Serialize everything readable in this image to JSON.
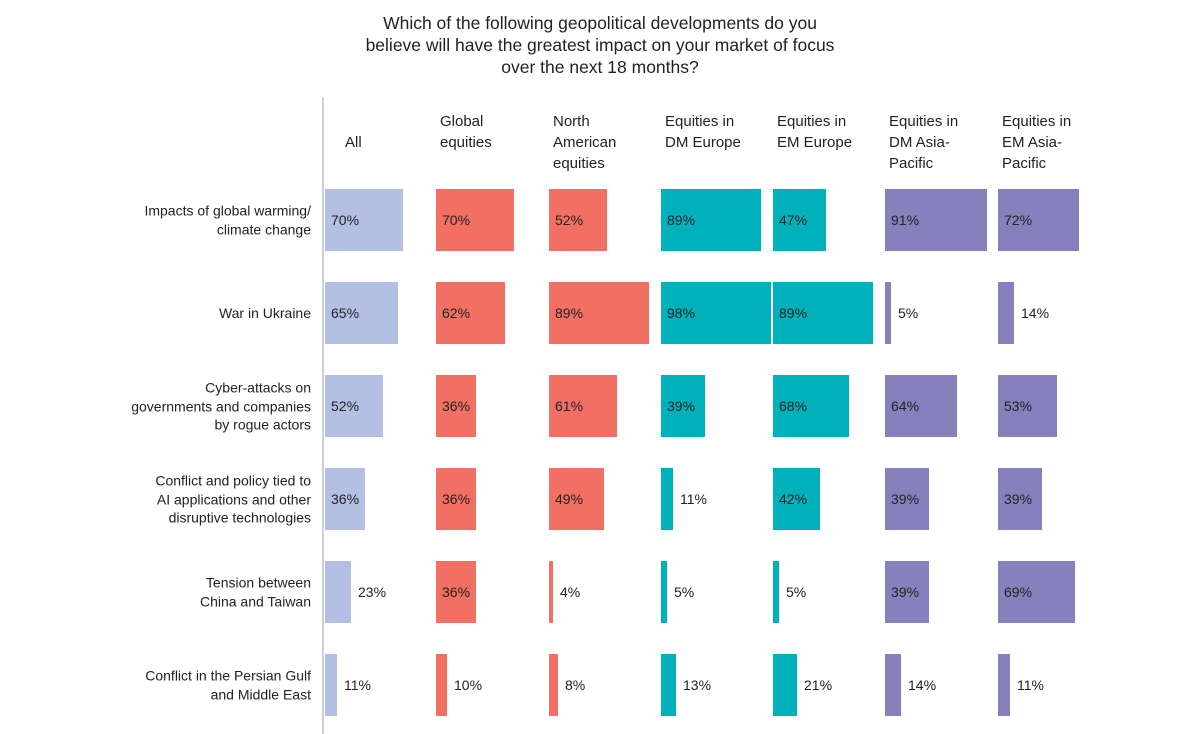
{
  "chart_data": {
    "type": "bar",
    "orientation": "horizontal",
    "title": "Which of the following geopolitical developments do you\nbelieve will have the greatest impact on your market of focus\nover the next 18 months?",
    "categories": [
      "Impacts of global warming/\nclimate change",
      "War in Ukraine",
      "Cyber-attacks on\ngovernments and companies\nby rogue actors",
      "Conflict and policy tied to\nAI applications and other\ndisruptive technologies",
      "Tension between\nChina and Taiwan",
      "Conflict in the Persian Gulf\nand Middle East"
    ],
    "series": [
      {
        "name": "All",
        "color": "#b4bfe4",
        "values": [
          70,
          65,
          52,
          36,
          23,
          11
        ]
      },
      {
        "name": "Global\nequities",
        "color": "#f26f63",
        "values": [
          70,
          62,
          36,
          36,
          36,
          10
        ]
      },
      {
        "name": "North\nAmerican\nequities",
        "color": "#f26f63",
        "values": [
          52,
          89,
          61,
          49,
          4,
          8
        ]
      },
      {
        "name": "Equities in\nDM Europe",
        "color": "#00b0ba",
        "values": [
          89,
          98,
          39,
          11,
          5,
          13
        ]
      },
      {
        "name": "Equities in\nEM Europe",
        "color": "#00b0ba",
        "values": [
          47,
          89,
          68,
          42,
          5,
          21
        ]
      },
      {
        "name": "Equities in\nDM Asia-\nPacific",
        "color": "#8681bc",
        "values": [
          91,
          5,
          64,
          39,
          39,
          14
        ]
      },
      {
        "name": "Equities in\nEM Asia-\nPacific",
        "color": "#8681bc",
        "values": [
          72,
          14,
          53,
          39,
          69,
          11
        ]
      }
    ],
    "value_suffix": "%",
    "xlim": [
      0,
      100
    ],
    "grid": false,
    "legend": "column headers"
  }
}
